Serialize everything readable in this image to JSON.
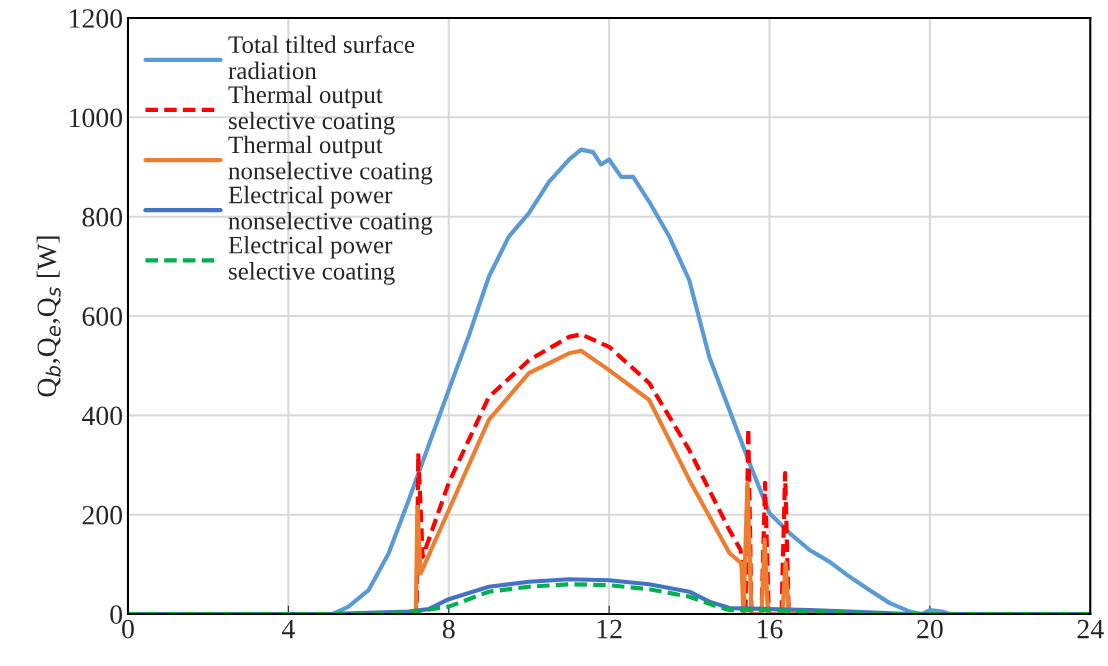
{
  "chart_data": {
    "type": "line",
    "ylabel": "Q$_{b}$,Q$_{e}$,Q$_{s}$ [W]",
    "xlim": [
      0,
      24
    ],
    "xticks": [
      0,
      4,
      8,
      12,
      16,
      20,
      24
    ],
    "ylim": [
      0,
      1200
    ],
    "yticks": [
      0,
      200,
      400,
      600,
      800,
      1000,
      1200
    ],
    "grid": true,
    "legend": "top left",
    "series": [
      {
        "name": "Total tilted surface\nradiation",
        "color": "#5b9bd5",
        "line_style": "solid",
        "x": [
          0,
          5.1,
          5.5,
          6,
          6.5,
          7,
          7.5,
          8,
          8.5,
          9,
          9.5,
          10,
          10.5,
          11,
          11.3,
          11.6,
          11.8,
          12,
          12.3,
          12.6,
          13,
          13.5,
          14,
          14.5,
          15,
          15.5,
          16,
          16.5,
          17,
          17.5,
          18,
          18.5,
          19,
          19.5,
          19.8,
          20,
          20.3,
          20.5,
          24
        ],
        "values": [
          0,
          0,
          15,
          48,
          122,
          229,
          340,
          451,
          560,
          679,
          760,
          807,
          870,
          915,
          935,
          930,
          905,
          915,
          880,
          880,
          830,
          760,
          672,
          517,
          411,
          304,
          203,
          163,
          129,
          105,
          75,
          48,
          22,
          5,
          0,
          8,
          5,
          0,
          0
        ]
      },
      {
        "name": "Thermal output\nselective coating",
        "color": "#ff0000",
        "line_style": "dashed",
        "x": [
          0,
          7.2,
          7.24,
          7.35,
          8,
          9,
          10,
          11,
          11.3,
          12,
          13,
          14,
          15,
          15.28,
          15.4,
          15.47,
          15.55,
          15.6,
          15.8,
          15.89,
          15.98,
          16.3,
          16.39,
          16.48,
          24
        ],
        "values": [
          0,
          0,
          324,
          115,
          264,
          437,
          511,
          558,
          563,
          538,
          465,
          330,
          169,
          129,
          0,
          374,
          0,
          0,
          0,
          264,
          0,
          0,
          284,
          0,
          0
        ]
      },
      {
        "name": "Thermal output\nnonselective coating",
        "color": "#ed7d31",
        "line_style": "solid",
        "x": [
          0,
          7.18,
          7.22,
          7.3,
          8,
          9,
          10,
          11,
          11.3,
          12,
          13,
          14,
          15,
          15.3,
          15.35,
          15.45,
          15.55,
          15.8,
          15.88,
          15.96,
          16.32,
          16.4,
          16.48,
          24
        ],
        "values": [
          0,
          0,
          216,
          82,
          209,
          391,
          485,
          525,
          530,
          491,
          431,
          270,
          123,
          102,
          0,
          264,
          0,
          0,
          150,
          0,
          0,
          103,
          0,
          0
        ]
      },
      {
        "name": "Electrical power\nnonselective coating",
        "color": "#4472c4",
        "line_style": "solid",
        "x": [
          0,
          5,
          7,
          7.5,
          8,
          9,
          10,
          11,
          12,
          13,
          14,
          14.5,
          15,
          16,
          17,
          18,
          19.5,
          24
        ],
        "values": [
          0,
          0,
          5,
          10,
          30,
          55,
          65,
          70,
          68,
          60,
          45,
          25,
          12,
          10,
          8,
          5,
          0,
          0
        ]
      },
      {
        "name": "Electrical power\nselective coating",
        "color": "#00b050",
        "line_style": "dashed",
        "x": [
          0,
          5,
          7,
          8,
          9,
          10,
          11,
          12,
          13,
          14,
          14.7,
          15,
          16,
          17,
          18,
          19,
          24
        ],
        "values": [
          0,
          0,
          3,
          15,
          45,
          55,
          60,
          58,
          50,
          35,
          15,
          8,
          8,
          5,
          3,
          0,
          0
        ]
      }
    ]
  }
}
